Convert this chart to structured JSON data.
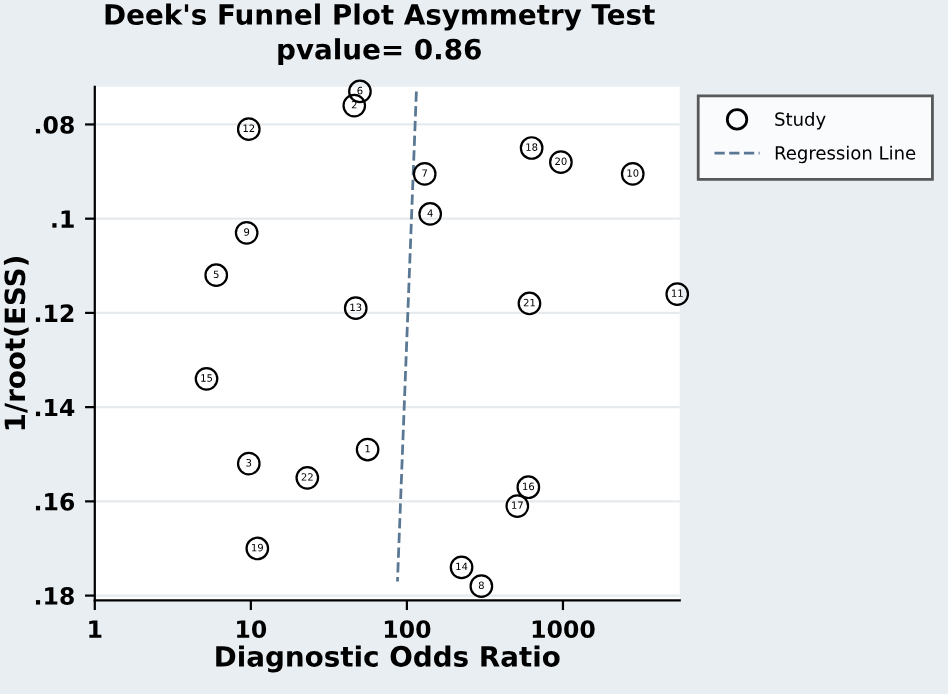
{
  "chart_data": {
    "type": "scatter",
    "title": "Deek's Funnel Plot Asymmetry Test",
    "subtitle": "pvalue= 0.86",
    "xlabel": "Diagnostic Odds Ratio",
    "ylabel": "1/root(ESS)",
    "log": "x",
    "xlim": [
      1,
      5600
    ],
    "xticks": [
      1,
      10,
      100,
      1000
    ],
    "ylim": [
      0.181,
      0.072
    ],
    "yticks": [
      {
        "value": 0.08,
        "label": ".08"
      },
      {
        "value": 0.1,
        "label": ".1"
      },
      {
        "value": 0.12,
        "label": ".12"
      },
      {
        "value": 0.14,
        "label": ".14"
      },
      {
        "value": 0.16,
        "label": ".16"
      },
      {
        "value": 0.18,
        "label": ".18"
      }
    ],
    "grid": "y",
    "legend": "top right",
    "series": [
      {
        "name": "Study",
        "color": "#000000",
        "marker": "circle",
        "x": [
          56,
          46,
          9.7,
          141,
          6,
          50,
          130,
          300,
          9.4,
          2800,
          5400,
          9.7,
          47,
          224,
          5.2,
          600,
          510,
          630,
          11,
          970,
          610,
          23
        ],
        "values": [
          0.149,
          0.076,
          0.152,
          0.099,
          0.112,
          0.073,
          0.0905,
          0.178,
          0.103,
          0.0905,
          0.116,
          0.081,
          0.119,
          0.174,
          0.134,
          0.157,
          0.161,
          0.085,
          0.17,
          0.088,
          0.118,
          0.155
        ]
      },
      {
        "name": "Regression Line",
        "type": "line",
        "color": "#5a7894",
        "line_style": "dashed",
        "x": [
          115,
          87
        ],
        "values": [
          0.073,
          0.177
        ]
      }
    ],
    "annotations": [
      {
        "text": "1",
        "x": 56,
        "y": 0.149
      },
      {
        "text": "2",
        "x": 46,
        "y": 0.076
      },
      {
        "text": "3",
        "x": 9.7,
        "y": 0.152
      },
      {
        "text": "4",
        "x": 141,
        "y": 0.099
      },
      {
        "text": "5",
        "x": 6,
        "y": 0.112
      },
      {
        "text": "6",
        "x": 50,
        "y": 0.073
      },
      {
        "text": "7",
        "x": 130,
        "y": 0.0905
      },
      {
        "text": "8",
        "x": 300,
        "y": 0.178
      },
      {
        "text": "9",
        "x": 9.4,
        "y": 0.103
      },
      {
        "text": "10",
        "x": 2800,
        "y": 0.0905
      },
      {
        "text": "11",
        "x": 5400,
        "y": 0.116
      },
      {
        "text": "12",
        "x": 9.7,
        "y": 0.081
      },
      {
        "text": "13",
        "x": 47,
        "y": 0.119
      },
      {
        "text": "14",
        "x": 224,
        "y": 0.174
      },
      {
        "text": "15",
        "x": 5.2,
        "y": 0.134
      },
      {
        "text": "16",
        "x": 600,
        "y": 0.157
      },
      {
        "text": "17",
        "x": 510,
        "y": 0.161
      },
      {
        "text": "18",
        "x": 630,
        "y": 0.085
      },
      {
        "text": "19",
        "x": 11,
        "y": 0.17
      },
      {
        "text": "20",
        "x": 970,
        "y": 0.088
      },
      {
        "text": "21",
        "x": 610,
        "y": 0.118
      },
      {
        "text": "22",
        "x": 23,
        "y": 0.155
      }
    ]
  }
}
